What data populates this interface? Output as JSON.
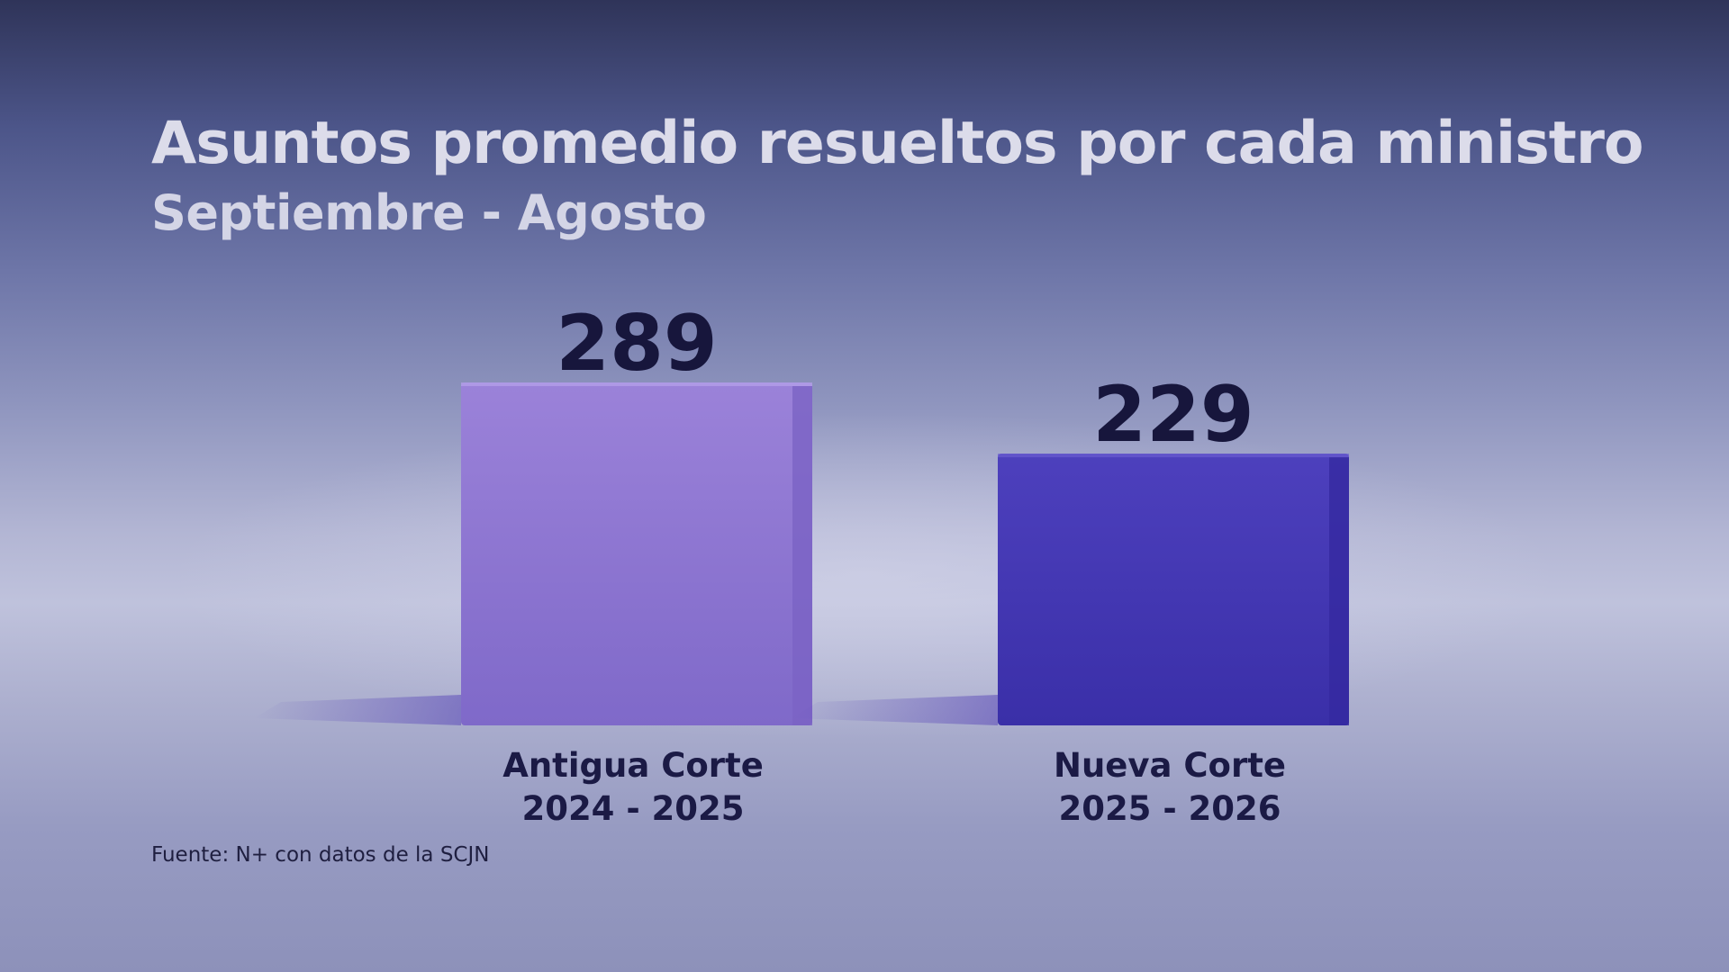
{
  "chart_data": {
    "type": "bar",
    "title": "Asuntos promedio resueltos por cada ministro",
    "subtitle": "Septiembre - Agosto",
    "categories": [
      [
        "Antigua Corte",
        "2024 - 2025"
      ],
      [
        "Nueva Corte",
        "2025 - 2026"
      ]
    ],
    "values": [
      289,
      229
    ],
    "colors": [
      "#8a6cd0",
      "#4136b0"
    ],
    "grid": false,
    "legend": "none",
    "source": "Fuente: N+ con datos de la SCJN"
  }
}
